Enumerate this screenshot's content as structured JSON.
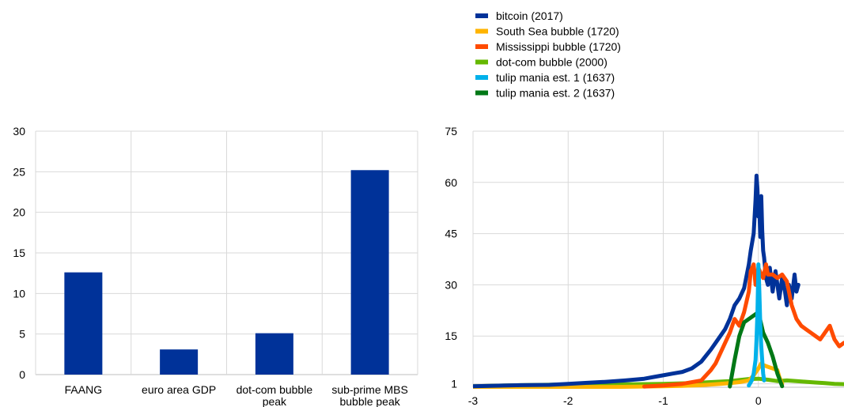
{
  "chart_data": [
    {
      "type": "bar",
      "title": "",
      "xlabel": "",
      "ylabel": "",
      "ylim": [
        0,
        30
      ],
      "yticks": [
        0,
        5,
        10,
        15,
        20,
        25,
        30
      ],
      "grid": "horizontal and vertical",
      "categories": [
        [
          "FAANG"
        ],
        [
          "euro area GDP"
        ],
        [
          "dot-com bubble",
          "peak"
        ],
        [
          "sub-prime MBS",
          "bubble peak"
        ]
      ],
      "values": [
        12.6,
        3.1,
        5.1,
        25.2
      ],
      "color": "#003299"
    },
    {
      "type": "line",
      "title": "",
      "xlabel": "",
      "ylabel": "",
      "xlim": [
        -3,
        0.9
      ],
      "ylim": [
        0,
        75
      ],
      "xticks": [
        -3,
        -2,
        -1,
        0
      ],
      "yticks": [
        1,
        15,
        30,
        45,
        60,
        75
      ],
      "grid": "horizontal and vertical",
      "legend_position": "top",
      "series": [
        {
          "name": "bitcoin (2017)",
          "color": "#003299",
          "x": [
            -3.0,
            -2.5,
            -2.2,
            -2.0,
            -1.8,
            -1.6,
            -1.4,
            -1.2,
            -1.1,
            -1.0,
            -0.9,
            -0.8,
            -0.7,
            -0.6,
            -0.5,
            -0.45,
            -0.4,
            -0.35,
            -0.3,
            -0.25,
            -0.2,
            -0.15,
            -0.1,
            -0.08,
            -0.05,
            -0.03,
            -0.02,
            -0.01,
            0.0,
            0.01,
            0.02,
            0.03,
            0.04,
            0.05,
            0.06,
            0.08,
            0.1,
            0.12,
            0.15,
            0.18,
            0.2,
            0.22,
            0.25,
            0.28,
            0.3,
            0.32,
            0.35,
            0.38,
            0.4,
            0.42
          ],
          "y": [
            0.3,
            0.6,
            0.7,
            1.0,
            1.3,
            1.6,
            2.0,
            2.5,
            3.0,
            3.5,
            4.0,
            4.5,
            5.5,
            7.5,
            11,
            13,
            15,
            17,
            20,
            24,
            26,
            29,
            36,
            40,
            45,
            55,
            62,
            58,
            50,
            52,
            44,
            56,
            46,
            40,
            38,
            32,
            30,
            35,
            28,
            34,
            30,
            26,
            32,
            28,
            24,
            30,
            26,
            33,
            28,
            30
          ]
        },
        {
          "name": "South Sea bubble (1720)",
          "color": "#ffb400",
          "x": [
            -3.0,
            -2.0,
            -1.5,
            -1.0,
            -0.8,
            -0.6,
            -0.4,
            -0.3,
            -0.2,
            -0.1,
            -0.05,
            0.0,
            0.03,
            0.05,
            0.1,
            0.15,
            0.2,
            0.22,
            0.25
          ],
          "y": [
            0.1,
            0.1,
            0.1,
            0.3,
            0.4,
            0.6,
            1.0,
            1.2,
            1.5,
            2.0,
            3.5,
            5.5,
            7.0,
            6.5,
            6.0,
            5.5,
            5.0,
            3.0,
            1.0
          ]
        },
        {
          "name": "Mississippi bubble (1720)",
          "color": "#ff4b00",
          "x": [
            -1.2,
            -1.0,
            -0.8,
            -0.6,
            -0.5,
            -0.45,
            -0.4,
            -0.35,
            -0.3,
            -0.25,
            -0.2,
            -0.15,
            -0.1,
            -0.08,
            -0.05,
            -0.03,
            0.0,
            0.03,
            0.05,
            0.08,
            0.1,
            0.15,
            0.2,
            0.25,
            0.3,
            0.35,
            0.4,
            0.45,
            0.5,
            0.55,
            0.6,
            0.65,
            0.7,
            0.75,
            0.8,
            0.85,
            0.9
          ],
          "y": [
            0.2,
            0.5,
            1.0,
            2.0,
            5.0,
            7.0,
            10,
            13,
            16,
            20,
            18,
            22,
            28,
            34,
            36,
            30,
            35,
            33,
            32,
            36,
            33,
            33,
            32,
            33,
            31,
            24,
            20,
            18,
            17,
            16,
            15,
            14,
            16,
            18,
            14,
            12,
            13
          ]
        },
        {
          "name": "dot-com bubble (2000)",
          "color": "#65b800",
          "x": [
            -3.0,
            -2.5,
            -2.0,
            -1.5,
            -1.0,
            -0.7,
            -0.5,
            -0.3,
            -0.2,
            -0.1,
            0.0,
            0.1,
            0.2,
            0.3,
            0.4,
            0.5,
            0.6,
            0.7,
            0.8,
            0.9
          ],
          "y": [
            0.3,
            0.6,
            0.8,
            0.8,
            1.0,
            1.2,
            1.5,
            1.8,
            2.1,
            2.4,
            2.5,
            2.2,
            1.8,
            2.0,
            1.8,
            1.6,
            1.4,
            1.2,
            1.0,
            0.9
          ]
        },
        {
          "name": "tulip mania est. 1 (1637)",
          "color": "#00b1ea",
          "x": [
            -0.1,
            -0.07,
            -0.05,
            -0.03,
            -0.02,
            -0.01,
            0.0,
            0.01,
            0.02,
            0.03,
            0.04,
            0.05,
            0.06
          ],
          "y": [
            0.5,
            2.0,
            4.0,
            8.0,
            14.0,
            22.0,
            36.0,
            28.0,
            18.0,
            12.0,
            8.0,
            4.0,
            2.0
          ]
        },
        {
          "name": "tulip mania est. 2 (1637)",
          "color": "#007816",
          "x": [
            -0.3,
            -0.25,
            -0.2,
            -0.15,
            -0.1,
            -0.05,
            0.0,
            0.05,
            0.1,
            0.15,
            0.2,
            0.25
          ],
          "y": [
            0.2,
            8.0,
            15.0,
            19.0,
            20.0,
            21.0,
            22.0,
            16.0,
            13.0,
            9.0,
            4.0,
            0.3
          ]
        }
      ]
    }
  ]
}
